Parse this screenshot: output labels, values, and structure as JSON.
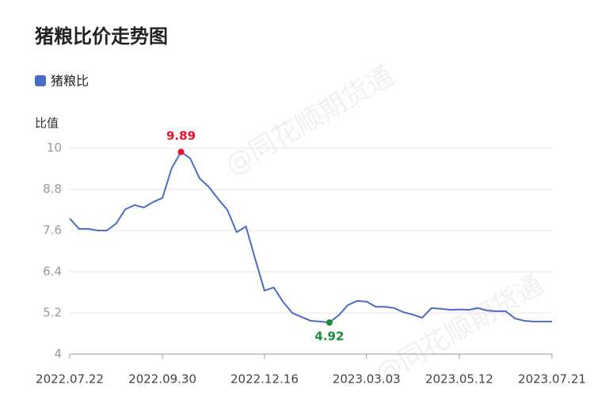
{
  "chart_data": {
    "type": "line",
    "title": "猪粮比价走势图",
    "y_axis_label": "比值",
    "watermark": "@同花顺期货通",
    "categories": [
      "2022.07.22",
      null,
      null,
      null,
      null,
      null,
      null,
      null,
      null,
      null,
      "2022.09.30",
      null,
      null,
      null,
      null,
      null,
      null,
      null,
      null,
      null,
      null,
      "2022.12.16",
      null,
      null,
      null,
      null,
      null,
      null,
      null,
      null,
      null,
      null,
      "2023.03.03",
      null,
      null,
      null,
      null,
      null,
      null,
      null,
      null,
      null,
      "2023.05.12",
      null,
      null,
      null,
      null,
      null,
      null,
      null,
      null,
      null,
      "2023.07.21"
    ],
    "series": [
      {
        "name": "猪粮比",
        "color": "#4a6cc7",
        "values": [
          7.95,
          7.65,
          7.65,
          7.6,
          7.6,
          7.8,
          8.22,
          8.34,
          8.27,
          8.43,
          8.55,
          9.42,
          9.89,
          9.7,
          9.12,
          8.87,
          8.52,
          8.2,
          7.55,
          7.72,
          6.77,
          5.85,
          5.94,
          5.52,
          5.2,
          5.08,
          4.97,
          4.95,
          4.92,
          5.13,
          5.43,
          5.55,
          5.53,
          5.38,
          5.38,
          5.34,
          5.22,
          5.15,
          5.06,
          5.34,
          5.32,
          5.29,
          5.3,
          5.29,
          5.34,
          5.27,
          5.25,
          5.25,
          5.04,
          4.97,
          4.95,
          4.95,
          4.95
        ]
      }
    ],
    "max_color": "#e8112d",
    "min_color": "#1a8c3a",
    "ylim": [
      4,
      10
    ],
    "yticks": [
      4,
      5.2,
      6.4,
      7.6,
      8.8,
      10
    ],
    "grid": true
  }
}
